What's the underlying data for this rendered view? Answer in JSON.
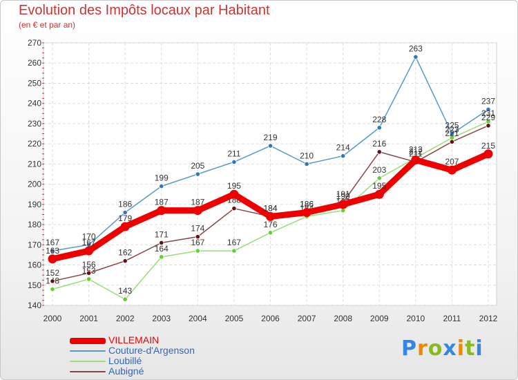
{
  "chart_data": {
    "type": "line",
    "title": "Evolution des Impôts locaux par Habitant",
    "subtitle": "(en € et par an)",
    "xlabel": "",
    "ylabel": "",
    "categories": [
      "2000",
      "2001",
      "2002",
      "2003",
      "2004",
      "2005",
      "2006",
      "2007",
      "2008",
      "2009",
      "2010",
      "2011",
      "2012"
    ],
    "ylim": [
      140,
      270
    ],
    "yticks": [
      140,
      150,
      160,
      170,
      180,
      190,
      200,
      210,
      220,
      230,
      240,
      250,
      260,
      270
    ],
    "grid": true,
    "legend_position": "bottom-left",
    "series": [
      {
        "name": "Couture-d'Argenson",
        "color": "#5599cc",
        "marker": "#3377bb",
        "weight": "thin",
        "values": [
          167,
          170,
          186,
          199,
          205,
          211,
          219,
          210,
          214,
          228,
          263,
          225,
          237
        ]
      },
      {
        "name": "Loubillé",
        "color": "#99dd77",
        "marker": "#66cc33",
        "weight": "thin",
        "values": [
          148,
          153,
          143,
          164,
          167,
          167,
          176,
          184,
          187,
          203,
          213,
          223,
          231
        ]
      },
      {
        "name": "Aubigné",
        "color": "#884444",
        "marker": "#661111",
        "weight": "thin",
        "values": [
          152,
          156,
          162,
          171,
          174,
          188,
          184,
          186,
          191,
          216,
          211,
          221,
          229
        ]
      },
      {
        "name": "VILLEMAIN",
        "color": "#ee0000",
        "marker": "#ee0000",
        "weight": "thick",
        "values": [
          163,
          167,
          179,
          187,
          187,
          195,
          184,
          186,
          190,
          195,
          212,
          207,
          215
        ]
      }
    ],
    "legend_order": [
      3,
      0,
      1,
      2
    ]
  },
  "logo": {
    "letters": [
      "P",
      "r",
      "o",
      "x",
      "i",
      "t",
      "i"
    ],
    "colors": [
      "#3388dd",
      "#ee8800",
      "#88bb22",
      "#3388dd",
      "#ee8800",
      "#88bb22",
      "#3388dd"
    ]
  }
}
